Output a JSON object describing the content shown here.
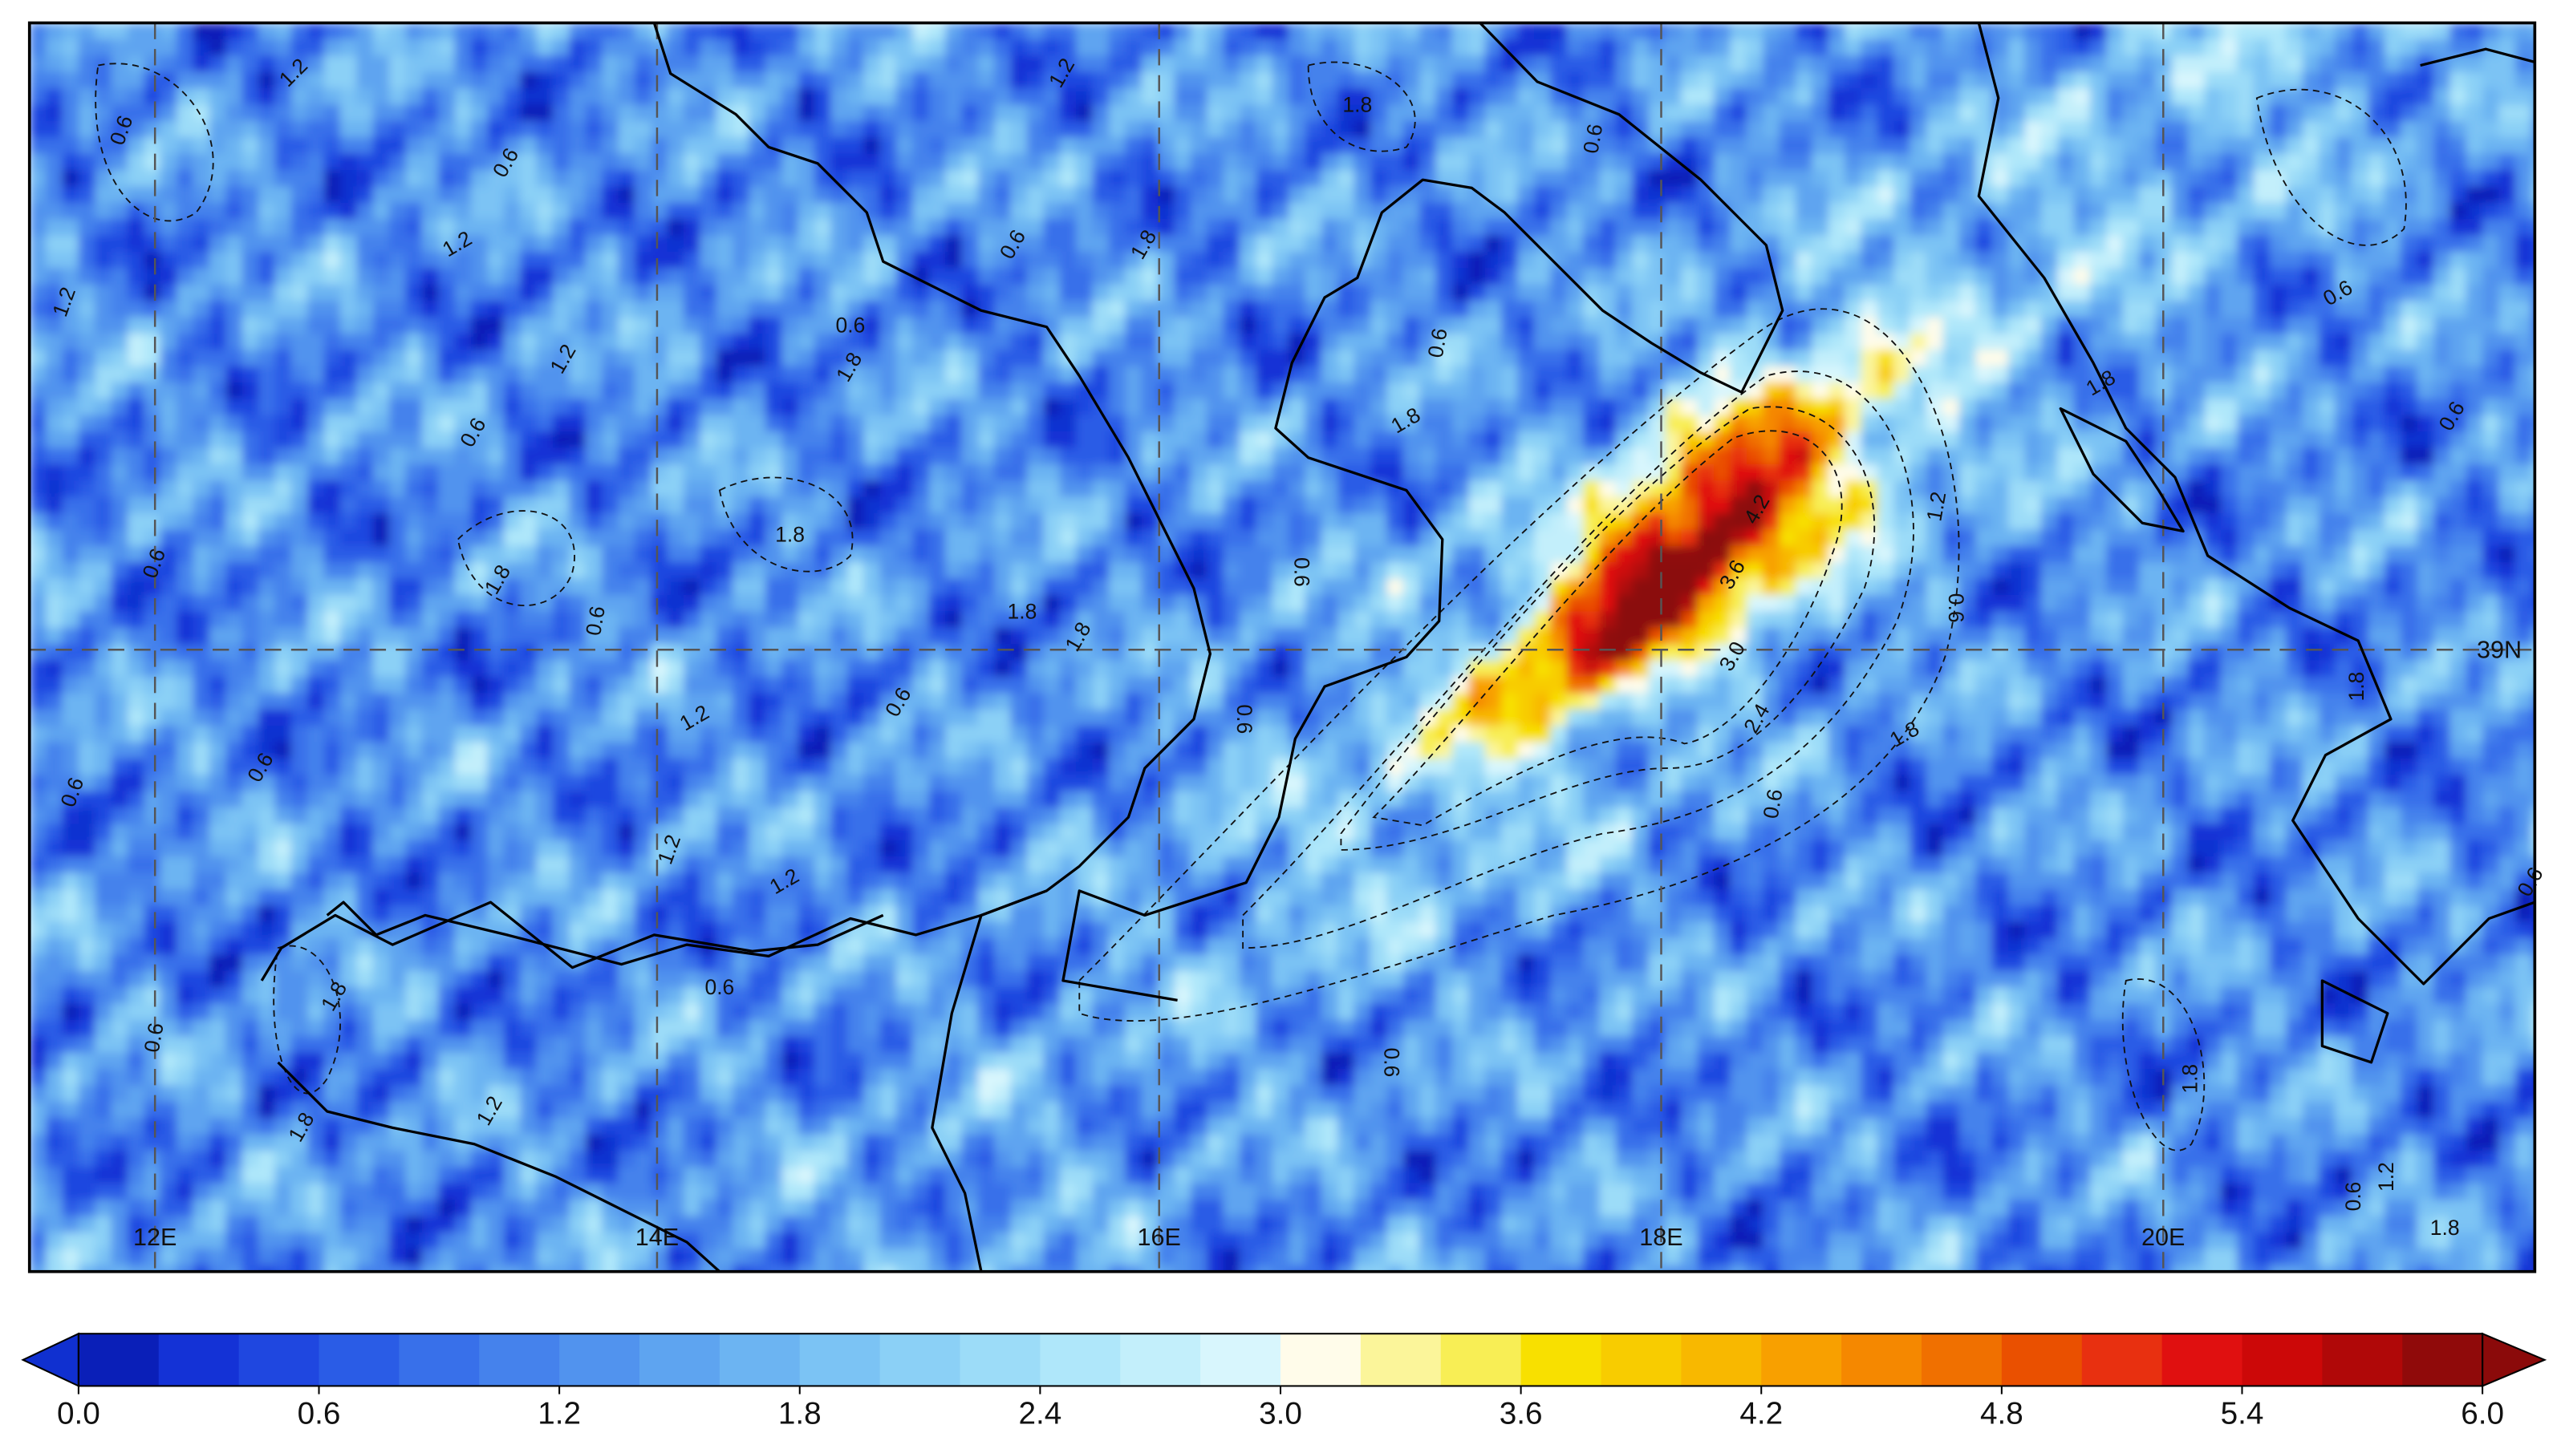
{
  "chart_data": {
    "type": "contour",
    "xlim": [
      11.5,
      21.48
    ],
    "xticks": [
      {
        "value": 12,
        "label": "12E"
      },
      {
        "value": 14,
        "label": "14E"
      },
      {
        "value": 16,
        "label": "16E"
      },
      {
        "value": 18,
        "label": "18E"
      },
      {
        "value": 20,
        "label": "20E"
      }
    ],
    "ylim": [
      36.52,
      41.5
    ],
    "yticks": [
      {
        "value": 39,
        "label": "39N"
      }
    ],
    "grid": true,
    "contour_labels": [
      "0.6",
      "1.2",
      "1.8",
      "1.2",
      "0.6",
      "0.6",
      "0.6",
      "1.8",
      "0.6",
      "1.2",
      "1.8",
      "1.2",
      "0.6",
      "1.8",
      "0.6",
      "1.8",
      "0.6",
      "1.8",
      "0.6",
      "1.8",
      "1.8",
      "0.6",
      "1.2",
      "0.6",
      "0.6",
      "0.6",
      "0.6",
      "1.2",
      "1.2",
      "0.6",
      "1.8",
      "0.6",
      "1.8",
      "1.2",
      "0.6",
      "4.2",
      "3.6",
      "3.0",
      "2.4",
      "1.8",
      "0.6",
      "1.2",
      "0.6",
      "1.8",
      "0.6",
      "0.6",
      "1.8",
      "0.6",
      "1.8",
      "1.2",
      "0.6",
      "1.8",
      "1.2"
    ],
    "colorbar": {
      "lim": [
        0,
        6
      ],
      "ticks": [
        {
          "value": 0,
          "label": "0.0"
        },
        {
          "value": 0.6,
          "label": "0.6"
        },
        {
          "value": 1.2,
          "label": "1.2"
        },
        {
          "value": 1.8,
          "label": "1.8"
        },
        {
          "value": 2.4,
          "label": "2.4"
        },
        {
          "value": 3,
          "label": "3.0"
        },
        {
          "value": 3.6,
          "label": "3.6"
        },
        {
          "value": 4.2,
          "label": "4.2"
        },
        {
          "value": 4.8,
          "label": "4.8"
        },
        {
          "value": 5.4,
          "label": "5.4"
        },
        {
          "value": 6,
          "label": "6.0"
        }
      ],
      "colors": [
        "#0a1fb8",
        "#1432d6",
        "#1f47e0",
        "#2a5ce6",
        "#3870ea",
        "#4582ec",
        "#5193ee",
        "#5ea4f0",
        "#6cb4f2",
        "#7bc3f4",
        "#8bd0f6",
        "#9cdcf8",
        "#afe7fa",
        "#c3effb",
        "#d8f6fd",
        "#fffcea",
        "#fbf59a",
        "#f8ee55",
        "#f8e000",
        "#f8cc00",
        "#f8b800",
        "#f8a000",
        "#f58800",
        "#f07000",
        "#ea5000",
        "#e83010",
        "#e01010",
        "#cc0808",
        "#b00808",
        "#900a0a"
      ],
      "extend_colors": [
        "#1030d0",
        "#8b0a0a"
      ]
    }
  }
}
